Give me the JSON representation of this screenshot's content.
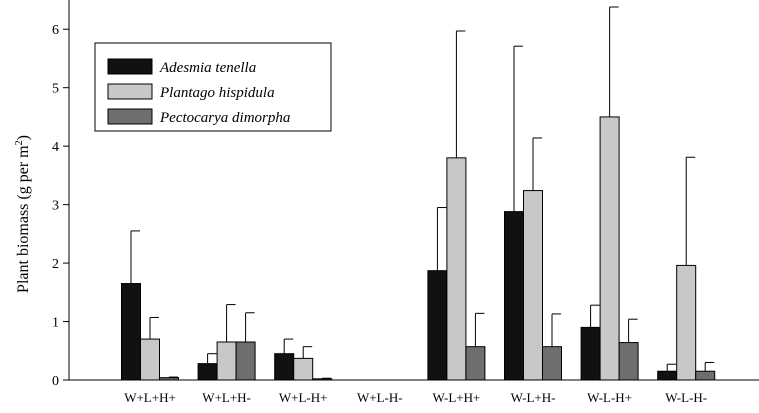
{
  "chart_data": {
    "type": "bar",
    "title": "",
    "xlabel": "",
    "ylabel": "Plant biomass (g per m",
    "ylabel_sup": "2",
    "ylabel_close": ")",
    "ylim": [
      0,
      6.5
    ],
    "yticks": [
      "0",
      "1",
      "2",
      "3",
      "4",
      "5",
      "6"
    ],
    "categories": [
      "W+L+H+",
      "W+L+H-",
      "W+L-H+",
      "W+L-H-",
      "W-L+H+",
      "W-L+H-",
      "W-L-H+",
      "W-L-H-"
    ],
    "legend_position": "top-left",
    "grid": false,
    "error_bars": "upper only",
    "series": [
      {
        "name": "Adesmia tenella",
        "color": "#111111",
        "values": [
          1.65,
          0.28,
          0.45,
          0,
          1.87,
          2.88,
          0.9,
          0.15
        ],
        "errors": [
          0.9,
          0.17,
          0.25,
          0,
          1.08,
          2.83,
          0.38,
          0.12
        ]
      },
      {
        "name": "Plantago hispidula",
        "color": "#c8c8c8",
        "values": [
          0.7,
          0.65,
          0.37,
          0,
          3.8,
          3.24,
          4.5,
          1.96
        ],
        "errors": [
          0.37,
          0.64,
          0.2,
          0,
          2.17,
          0.9,
          1.88,
          1.85
        ]
      },
      {
        "name": "Pectocarya dimorpha",
        "color": "#6e6e6e",
        "values": [
          0.04,
          0.65,
          0.02,
          0,
          0.57,
          0.57,
          0.64,
          0.15
        ],
        "errors": [
          0.01,
          0.5,
          0.01,
          0,
          0.57,
          0.56,
          0.4,
          0.15
        ]
      }
    ]
  }
}
